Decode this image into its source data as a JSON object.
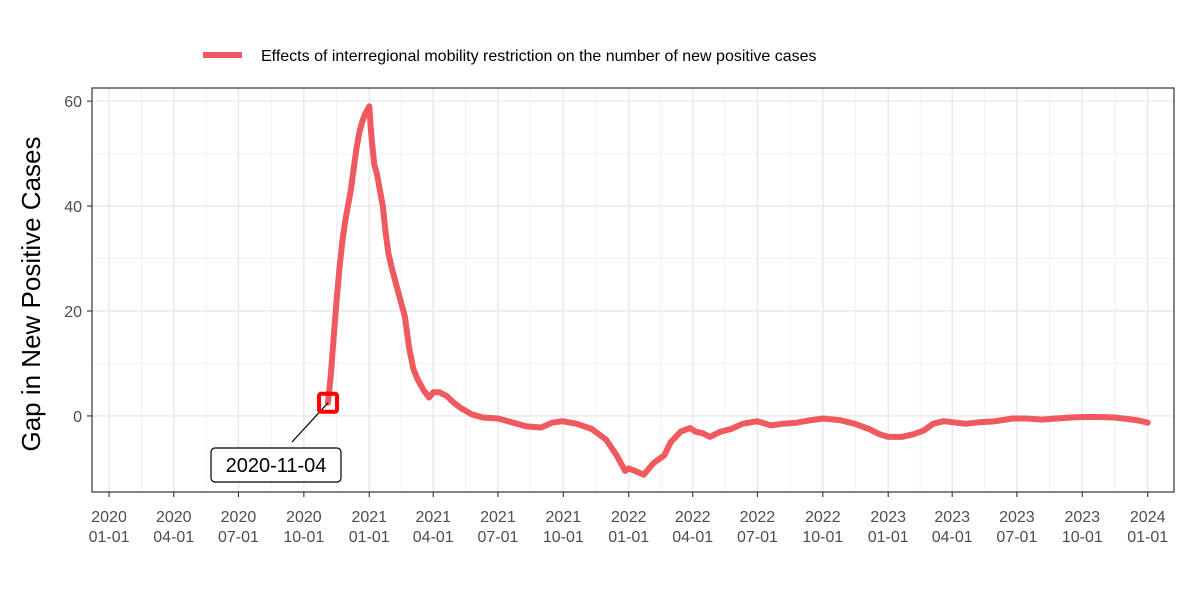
{
  "chart_data": {
    "type": "line",
    "title": "",
    "xlabel": "",
    "ylabel": "Gap in New Positive Cases",
    "legend": {
      "position": "top",
      "entries": [
        "Effects of interregional mobility restriction on the number of new positive cases"
      ]
    },
    "grid": true,
    "xlim": [
      "2019-12-08",
      "2024-02-07"
    ],
    "ylim": [
      -14.5,
      62.5
    ],
    "x_ticks": [
      {
        "date": "2020-01-01",
        "label": "2020\n01-01"
      },
      {
        "date": "2020-04-01",
        "label": "2020\n04-01"
      },
      {
        "date": "2020-07-01",
        "label": "2020\n07-01"
      },
      {
        "date": "2020-10-01",
        "label": "2020\n10-01"
      },
      {
        "date": "2021-01-01",
        "label": "2021\n01-01"
      },
      {
        "date": "2021-04-01",
        "label": "2021\n04-01"
      },
      {
        "date": "2021-07-01",
        "label": "2021\n07-01"
      },
      {
        "date": "2021-10-01",
        "label": "2021\n10-01"
      },
      {
        "date": "2022-01-01",
        "label": "2022\n01-01"
      },
      {
        "date": "2022-04-01",
        "label": "2022\n04-01"
      },
      {
        "date": "2022-07-01",
        "label": "2022\n07-01"
      },
      {
        "date": "2022-10-01",
        "label": "2022\n10-01"
      },
      {
        "date": "2023-01-01",
        "label": "2023\n01-01"
      },
      {
        "date": "2023-04-01",
        "label": "2023\n04-01"
      },
      {
        "date": "2023-07-01",
        "label": "2023\n07-01"
      },
      {
        "date": "2023-10-01",
        "label": "2023\n10-01"
      },
      {
        "date": "2024-01-01",
        "label": "2024\n01-01"
      }
    ],
    "y_ticks": [
      0,
      20,
      40,
      60
    ],
    "series": [
      {
        "name": "Effects of interregional mobility restriction on the number of new positive cases",
        "color": "#F05A5E",
        "points": [
          [
            "2020-11-04",
            2.5
          ],
          [
            "2020-11-08",
            8
          ],
          [
            "2020-11-12",
            15
          ],
          [
            "2020-11-16",
            22
          ],
          [
            "2020-11-20",
            28
          ],
          [
            "2020-11-24",
            33
          ],
          [
            "2020-11-28",
            37
          ],
          [
            "2020-12-02",
            40
          ],
          [
            "2020-12-06",
            43
          ],
          [
            "2020-12-10",
            47
          ],
          [
            "2020-12-14",
            51
          ],
          [
            "2020-12-18",
            54
          ],
          [
            "2020-12-22",
            56
          ],
          [
            "2020-12-26",
            57.5
          ],
          [
            "2020-12-30",
            58.5
          ],
          [
            "2021-01-01",
            59
          ],
          [
            "2021-01-03",
            55
          ],
          [
            "2021-01-05",
            52
          ],
          [
            "2021-01-08",
            48
          ],
          [
            "2021-01-12",
            46
          ],
          [
            "2021-01-16",
            43
          ],
          [
            "2021-01-20",
            40
          ],
          [
            "2021-01-24",
            35
          ],
          [
            "2021-01-28",
            31
          ],
          [
            "2021-02-02",
            28
          ],
          [
            "2021-02-08",
            25
          ],
          [
            "2021-02-14",
            22
          ],
          [
            "2021-02-20",
            19
          ],
          [
            "2021-02-26",
            13
          ],
          [
            "2021-03-04",
            9
          ],
          [
            "2021-03-10",
            7
          ],
          [
            "2021-03-18",
            5
          ],
          [
            "2021-03-26",
            3.5
          ],
          [
            "2021-04-01",
            4.5
          ],
          [
            "2021-04-10",
            4.5
          ],
          [
            "2021-04-20",
            3.8
          ],
          [
            "2021-04-30",
            2.5
          ],
          [
            "2021-05-10",
            1.5
          ],
          [
            "2021-05-25",
            0.3
          ],
          [
            "2021-06-10",
            -0.3
          ],
          [
            "2021-07-01",
            -0.5
          ],
          [
            "2021-07-20",
            -1.2
          ],
          [
            "2021-08-10",
            -2
          ],
          [
            "2021-08-31",
            -2.2
          ],
          [
            "2021-09-15",
            -1.3
          ],
          [
            "2021-09-30",
            -1
          ],
          [
            "2021-10-20",
            -1.5
          ],
          [
            "2021-11-10",
            -2.5
          ],
          [
            "2021-11-30",
            -4.5
          ],
          [
            "2021-12-15",
            -7.5
          ],
          [
            "2021-12-27",
            -10.5
          ],
          [
            "2022-01-01",
            -10
          ],
          [
            "2022-01-10",
            -10.5
          ],
          [
            "2022-01-22",
            -11.2
          ],
          [
            "2022-02-05",
            -9
          ],
          [
            "2022-02-20",
            -7.5
          ],
          [
            "2022-03-01",
            -5
          ],
          [
            "2022-03-15",
            -3
          ],
          [
            "2022-03-28",
            -2.3
          ],
          [
            "2022-04-05",
            -3
          ],
          [
            "2022-04-15",
            -3.3
          ],
          [
            "2022-04-25",
            -4
          ],
          [
            "2022-05-10",
            -3
          ],
          [
            "2022-05-25",
            -2.5
          ],
          [
            "2022-06-10",
            -1.5
          ],
          [
            "2022-07-01",
            -1
          ],
          [
            "2022-07-20",
            -1.8
          ],
          [
            "2022-08-05",
            -1.5
          ],
          [
            "2022-08-25",
            -1.3
          ],
          [
            "2022-09-15",
            -0.8
          ],
          [
            "2022-10-01",
            -0.5
          ],
          [
            "2022-10-25",
            -0.8
          ],
          [
            "2022-11-15",
            -1.5
          ],
          [
            "2022-12-05",
            -2.5
          ],
          [
            "2022-12-20",
            -3.5
          ],
          [
            "2023-01-01",
            -4
          ],
          [
            "2023-01-20",
            -4
          ],
          [
            "2023-02-05",
            -3.5
          ],
          [
            "2023-02-20",
            -2.8
          ],
          [
            "2023-03-05",
            -1.5
          ],
          [
            "2023-03-20",
            -1
          ],
          [
            "2023-04-01",
            -1.2
          ],
          [
            "2023-04-20",
            -1.5
          ],
          [
            "2023-05-10",
            -1.2
          ],
          [
            "2023-06-01",
            -1
          ],
          [
            "2023-06-25",
            -0.5
          ],
          [
            "2023-07-15",
            -0.5
          ],
          [
            "2023-08-05",
            -0.7
          ],
          [
            "2023-08-25",
            -0.5
          ],
          [
            "2023-09-15",
            -0.3
          ],
          [
            "2023-10-01",
            -0.2
          ],
          [
            "2023-10-25",
            -0.2
          ],
          [
            "2023-11-15",
            -0.3
          ],
          [
            "2023-12-05",
            -0.6
          ],
          [
            "2023-12-20",
            -0.9
          ],
          [
            "2024-01-01",
            -1.3
          ]
        ]
      }
    ],
    "annotations": [
      {
        "text": "2020-11-04",
        "x": "2020-11-04",
        "y": 2.5,
        "marker": "square",
        "marker_color": "#FF0000"
      }
    ]
  }
}
